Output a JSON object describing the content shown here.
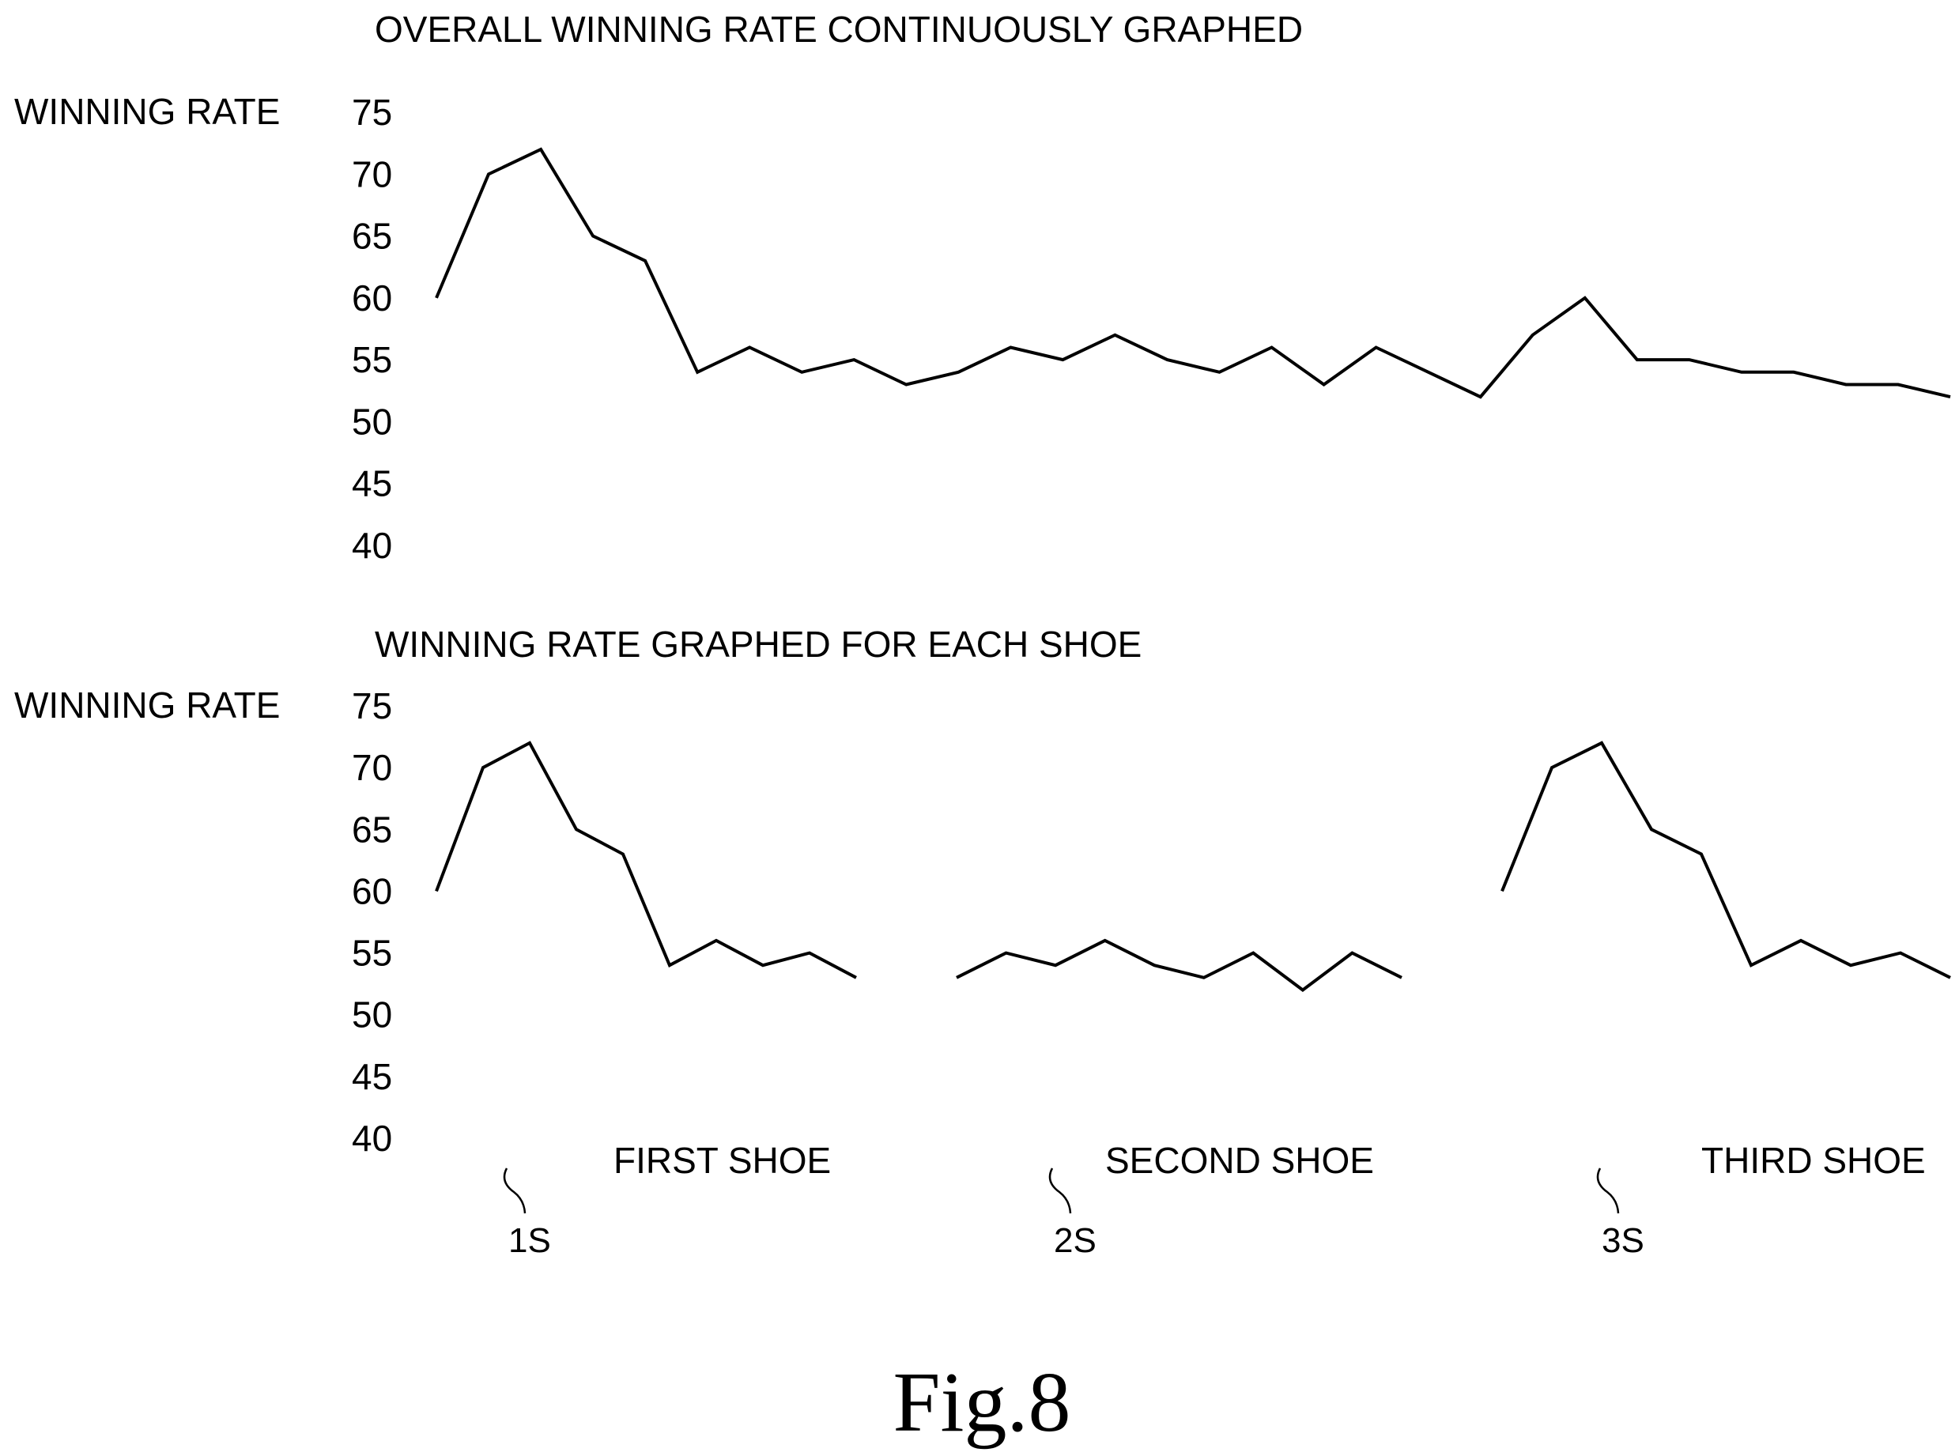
{
  "figure_label": "Fig.8",
  "chart_data": [
    {
      "type": "line",
      "title": "OVERALL WINNING RATE CONTINUOUSLY GRAPHED",
      "ylabel": "WINNING RATE",
      "xlabel": "",
      "ylim": [
        40,
        75
      ],
      "yticks": [
        75,
        70,
        65,
        60,
        55,
        50,
        45,
        40
      ],
      "grid": false,
      "x": [
        1,
        2,
        3,
        4,
        5,
        6,
        7,
        8,
        9,
        10,
        11,
        12,
        13,
        14,
        15,
        16,
        17,
        18,
        19,
        20,
        21,
        22,
        23,
        24,
        25,
        26,
        27,
        28,
        29,
        30
      ],
      "values": [
        60,
        70,
        72,
        65,
        63,
        54,
        56,
        54,
        55,
        53,
        54,
        56,
        55,
        57,
        55,
        54,
        56,
        53,
        56,
        54,
        52,
        57,
        60,
        55,
        55,
        54,
        54,
        53,
        53,
        52
      ]
    },
    {
      "type": "line",
      "title": "WINNING RATE GRAPHED FOR EACH SHOE",
      "ylabel": "WINNING RATE",
      "xlabel": "",
      "ylim": [
        40,
        75
      ],
      "yticks": [
        75,
        70,
        65,
        60,
        55,
        50,
        45,
        40
      ],
      "grid": false,
      "series": [
        {
          "name": "FIRST SHOE",
          "ref": "1S",
          "x": [
            1,
            2,
            3,
            4,
            5,
            6,
            7,
            8,
            9,
            10
          ],
          "values": [
            60,
            70,
            72,
            65,
            63,
            54,
            56,
            54,
            55,
            53
          ]
        },
        {
          "name": "SECOND SHOE",
          "ref": "2S",
          "x": [
            11,
            12,
            13,
            14,
            15,
            16,
            17,
            18,
            19,
            20
          ],
          "values": [
            53,
            55,
            54,
            56,
            54,
            53,
            55,
            52,
            55,
            53
          ]
        },
        {
          "name": "THIRD SHOE",
          "ref": "3S",
          "x": [
            21,
            22,
            23,
            24,
            25,
            26,
            27,
            28,
            29,
            30
          ],
          "values": [
            60,
            70,
            72,
            65,
            63,
            54,
            56,
            54,
            55,
            53
          ]
        }
      ]
    }
  ]
}
